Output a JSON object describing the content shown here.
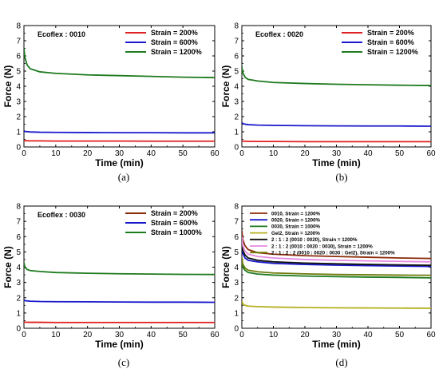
{
  "chart_data": [
    {
      "type": "line",
      "panel_label": "(a)",
      "annotation": "Ecoflex : 0010",
      "xlabel": "Time (min)",
      "ylabel": "Force (N)",
      "xlim": [
        0,
        60
      ],
      "ylim": [
        0,
        8
      ],
      "xticks": [
        "0",
        "10",
        "20",
        "30",
        "40",
        "50",
        "60"
      ],
      "yticks": [
        "0",
        "1",
        "2",
        "3",
        "4",
        "5",
        "6",
        "7",
        "8"
      ],
      "legend_position": "top-right",
      "series": [
        {
          "name": "Strain = 200%",
          "color": "#e02020",
          "x": [
            0,
            0.5,
            2,
            5,
            10,
            20,
            30,
            40,
            50,
            60
          ],
          "values": [
            0.42,
            0.41,
            0.4,
            0.4,
            0.39,
            0.39,
            0.39,
            0.38,
            0.38,
            0.38
          ]
        },
        {
          "name": "Strain = 600%",
          "color": "#1a1acc",
          "x": [
            0,
            0.5,
            2,
            5,
            10,
            20,
            30,
            40,
            50,
            60
          ],
          "values": [
            1.05,
            1.02,
            0.99,
            0.97,
            0.96,
            0.95,
            0.94,
            0.94,
            0.93,
            0.93
          ]
        },
        {
          "name": "Strain = 1200%",
          "color": "#1e7a1e",
          "x": [
            0,
            0.3,
            1,
            2,
            5,
            10,
            20,
            30,
            40,
            50,
            60
          ],
          "values": [
            6.5,
            5.9,
            5.4,
            5.15,
            4.95,
            4.85,
            4.75,
            4.7,
            4.65,
            4.6,
            4.57
          ]
        }
      ]
    },
    {
      "type": "line",
      "panel_label": "(b)",
      "annotation": "Ecoflex : 0020",
      "xlabel": "Time (min)",
      "ylabel": "Force (N)",
      "xlim": [
        0,
        60
      ],
      "ylim": [
        0,
        8
      ],
      "xticks": [
        "0",
        "10",
        "20",
        "30",
        "40",
        "50",
        "60"
      ],
      "yticks": [
        "0",
        "1",
        "2",
        "3",
        "4",
        "5",
        "6",
        "7",
        "8"
      ],
      "legend_position": "top-right",
      "series": [
        {
          "name": "Strain = 200%",
          "color": "#e02020",
          "x": [
            0,
            0.5,
            2,
            5,
            10,
            20,
            30,
            40,
            50,
            60
          ],
          "values": [
            0.4,
            0.38,
            0.37,
            0.36,
            0.36,
            0.35,
            0.35,
            0.35,
            0.35,
            0.35
          ]
        },
        {
          "name": "Strain = 600%",
          "color": "#1a1acc",
          "x": [
            0,
            0.5,
            2,
            5,
            10,
            20,
            30,
            40,
            50,
            60
          ],
          "values": [
            1.6,
            1.52,
            1.47,
            1.44,
            1.42,
            1.4,
            1.39,
            1.38,
            1.38,
            1.37
          ]
        },
        {
          "name": "Strain = 1200%",
          "color": "#1e7a1e",
          "x": [
            0,
            0.3,
            1,
            2,
            5,
            10,
            20,
            30,
            40,
            50,
            60
          ],
          "values": [
            5.3,
            4.9,
            4.6,
            4.45,
            4.35,
            4.25,
            4.18,
            4.13,
            4.1,
            4.07,
            4.05
          ]
        }
      ]
    },
    {
      "type": "line",
      "panel_label": "(c)",
      "annotation": "Ecoflex : 0030",
      "xlabel": "Time (min)",
      "ylabel": "Force (N)",
      "xlim": [
        0,
        60
      ],
      "ylim": [
        0,
        8
      ],
      "xticks": [
        "0",
        "10",
        "20",
        "30",
        "40",
        "50",
        "60"
      ],
      "yticks": [
        "0",
        "1",
        "2",
        "3",
        "4",
        "5",
        "6",
        "7",
        "8"
      ],
      "legend_position": "top-right",
      "series": [
        {
          "name": "Strain = 200%",
          "color": "#e02020",
          "legend_color": "#8b2a0a",
          "x": [
            0,
            0.5,
            2,
            5,
            10,
            20,
            30,
            40,
            50,
            60
          ],
          "values": [
            0.42,
            0.4,
            0.39,
            0.39,
            0.38,
            0.38,
            0.38,
            0.38,
            0.38,
            0.38
          ]
        },
        {
          "name": "Strain = 600%",
          "color": "#1a1acc",
          "x": [
            0,
            0.5,
            2,
            5,
            10,
            20,
            30,
            40,
            50,
            60
          ],
          "values": [
            1.85,
            1.8,
            1.77,
            1.75,
            1.74,
            1.73,
            1.72,
            1.71,
            1.71,
            1.7
          ]
        },
        {
          "name": "Strain = 1000%",
          "color": "#1e7a1e",
          "x": [
            0,
            0.3,
            1,
            2,
            5,
            10,
            20,
            30,
            40,
            50,
            60
          ],
          "values": [
            4.3,
            4.0,
            3.85,
            3.78,
            3.72,
            3.65,
            3.6,
            3.57,
            3.55,
            3.53,
            3.52
          ]
        }
      ]
    },
    {
      "type": "line",
      "panel_label": "(d)",
      "xlabel": "Time (min)",
      "ylabel": "Force (N)",
      "xlim": [
        0,
        60
      ],
      "ylim": [
        0,
        8
      ],
      "xticks": [
        "0",
        "10",
        "20",
        "30",
        "40",
        "50",
        "60"
      ],
      "yticks": [
        "0",
        "1",
        "2",
        "3",
        "4",
        "5",
        "6",
        "7",
        "8"
      ],
      "legend_position": "top-left",
      "series": [
        {
          "name": "0010, Strain = 1200%",
          "color": "#8b2a0a",
          "x": [
            0,
            0.3,
            1,
            2,
            5,
            10,
            20,
            30,
            40,
            50,
            60
          ],
          "values": [
            6.4,
            5.8,
            5.4,
            5.15,
            4.95,
            4.85,
            4.75,
            4.7,
            4.65,
            4.6,
            4.57
          ]
        },
        {
          "name": "0020, Strain = 1200%",
          "color": "#1a1acc",
          "x": [
            0,
            0.3,
            1,
            2,
            5,
            10,
            20,
            30,
            40,
            50,
            60
          ],
          "values": [
            5.3,
            4.9,
            4.6,
            4.45,
            4.35,
            4.25,
            4.18,
            4.13,
            4.1,
            4.07,
            4.05
          ]
        },
        {
          "name": "0030, Strain = 1000%",
          "color": "#1e7a1e",
          "x": [
            0,
            0.3,
            1,
            2,
            5,
            10,
            20,
            30,
            40,
            50,
            60
          ],
          "values": [
            4.4,
            4.0,
            3.8,
            3.65,
            3.55,
            3.48,
            3.42,
            3.38,
            3.35,
            3.33,
            3.3
          ]
        },
        {
          "name": "Gel2, Strain = 1200%",
          "color": "#b5b020",
          "x": [
            0,
            0.3,
            1,
            2,
            5,
            10,
            20,
            30,
            40,
            50,
            60
          ],
          "values": [
            1.8,
            1.6,
            1.5,
            1.45,
            1.42,
            1.39,
            1.36,
            1.34,
            1.33,
            1.32,
            1.31
          ]
        },
        {
          "name": "2 : 1 : 2 (0010 : 0020), Strain = 1200%",
          "color": "#111111",
          "x": [
            0,
            0.3,
            1,
            2,
            5,
            10,
            20,
            30,
            40,
            50,
            60
          ],
          "values": [
            5.6,
            5.1,
            4.8,
            4.6,
            4.45,
            4.35,
            4.27,
            4.22,
            4.18,
            4.15,
            4.12
          ]
        },
        {
          "name": "2 : 1 : 2 (0010 : 0020 : 0030), Strain = 1200%",
          "color": "#e488e0",
          "x": [
            0,
            0.3,
            1,
            2,
            5,
            10,
            20,
            30,
            40,
            50,
            60
          ],
          "values": [
            6.0,
            5.4,
            5.05,
            4.85,
            4.7,
            4.6,
            4.5,
            4.45,
            4.41,
            4.38,
            4.35
          ]
        },
        {
          "name": "2 : 1 : 2 : 2 (0010 : 0020 : 0030 : Gel2), Strain = 1200%",
          "color": "#6e7a0a",
          "x": [
            0,
            0.3,
            1,
            2,
            5,
            10,
            20,
            30,
            40,
            50,
            60
          ],
          "values": [
            4.6,
            4.2,
            3.95,
            3.8,
            3.7,
            3.62,
            3.56,
            3.52,
            3.5,
            3.48,
            3.47
          ]
        }
      ]
    }
  ]
}
